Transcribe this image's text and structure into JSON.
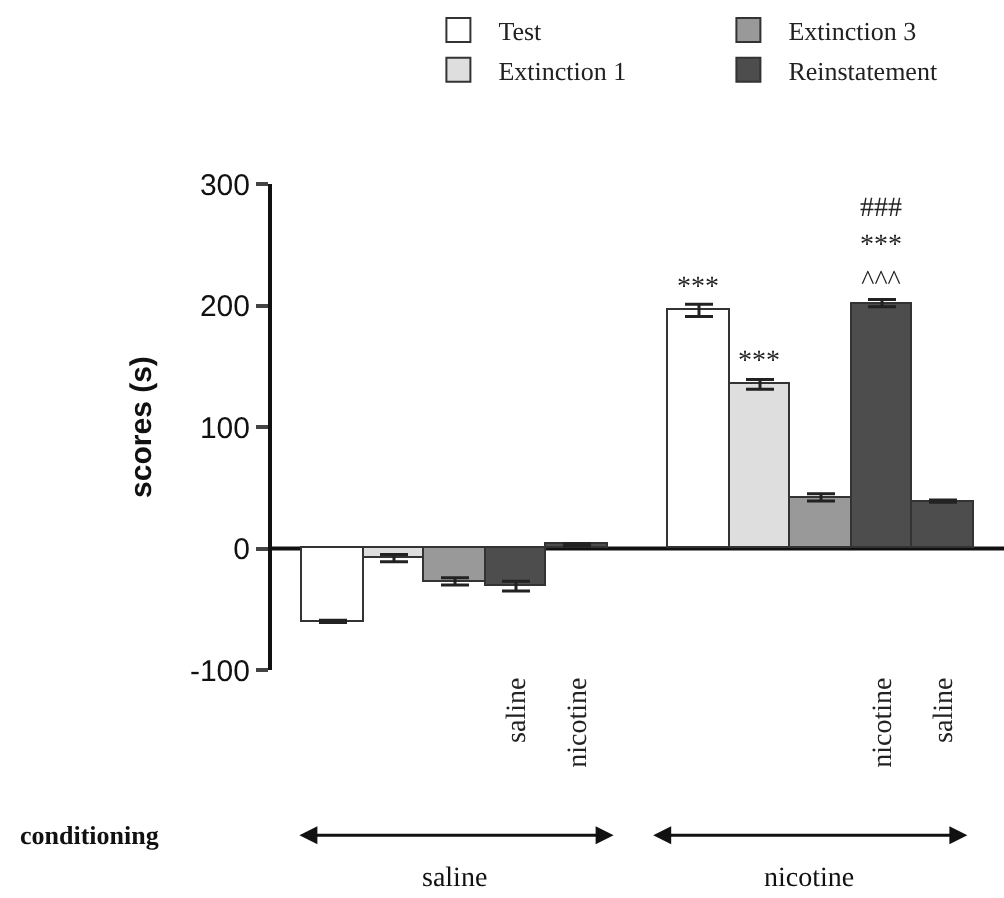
{
  "chart_data": {
    "type": "bar",
    "ylabel": "scores (s)",
    "categories": [
      null,
      null,
      null,
      "saline",
      "nicotine",
      null,
      null,
      null,
      null,
      "nicotine",
      "saline"
    ],
    "series": [
      {
        "name": "Test",
        "color": "#ffffff",
        "values": [
          -60,
          null,
          null,
          null,
          null,
          null,
          196,
          null,
          null,
          null,
          null
        ],
        "errors": [
          1,
          null,
          null,
          null,
          null,
          null,
          5,
          null,
          null,
          null,
          null
        ],
        "value_labels": [
          null,
          null,
          null,
          null,
          null,
          null,
          "***",
          null,
          null,
          null,
          null
        ]
      },
      {
        "name": "Extinction 1",
        "color": "#dedede",
        "values": [
          null,
          -8,
          null,
          null,
          null,
          null,
          null,
          135,
          null,
          null,
          null
        ],
        "errors": [
          null,
          3,
          null,
          null,
          null,
          null,
          null,
          4,
          null,
          null,
          null
        ],
        "value_labels": [
          null,
          null,
          null,
          null,
          null,
          null,
          null,
          "***",
          null,
          null,
          null
        ]
      },
      {
        "name": "Extinction 3",
        "color": "#999999",
        "values": [
          null,
          null,
          -27,
          null,
          null,
          null,
          null,
          null,
          42,
          null,
          null
        ],
        "errors": [
          null,
          null,
          3,
          null,
          null,
          null,
          null,
          null,
          3,
          null,
          null
        ]
      },
      {
        "name": "Reinstatement",
        "color": "#4d4d4d",
        "values": [
          null,
          null,
          null,
          -31,
          3,
          null,
          null,
          null,
          null,
          202,
          39
        ],
        "errors": [
          null,
          null,
          null,
          4,
          1,
          null,
          null,
          null,
          null,
          3,
          1
        ],
        "value_labels": [
          null,
          null,
          null,
          null,
          null,
          null,
          null,
          null,
          null,
          "###\n***\n^^^",
          null
        ]
      }
    ],
    "ref_lines": [
      {
        "axis": "y",
        "value": 0,
        "color": "#111111"
      }
    ],
    "ylim": [
      -100,
      300
    ],
    "yticks": [
      -100,
      0,
      100,
      200,
      300
    ],
    "legend": "top",
    "annotations": [
      "conditioning",
      "saline",
      "nicotine"
    ]
  }
}
